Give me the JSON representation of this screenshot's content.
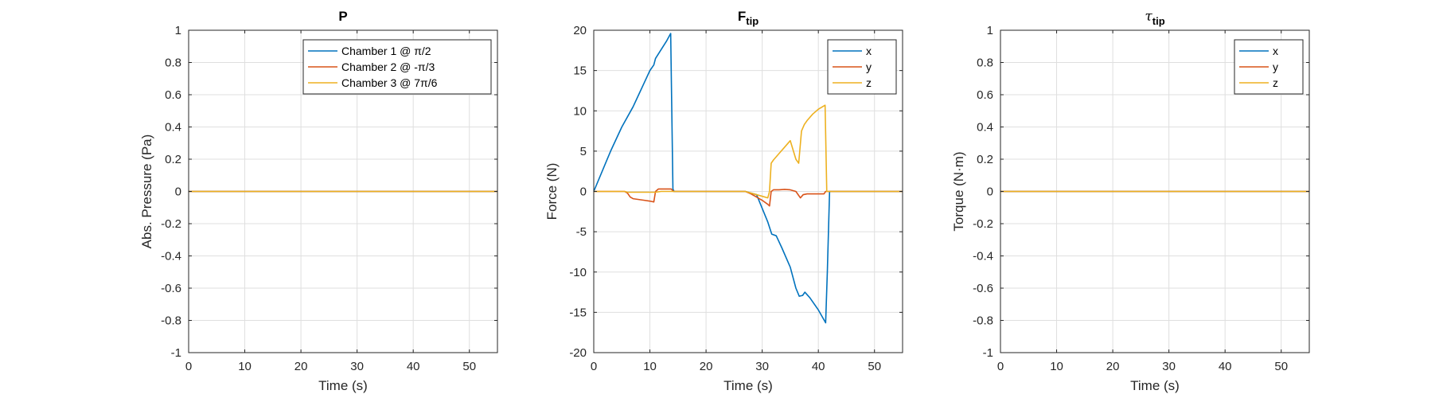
{
  "chart_data": [
    {
      "type": "line",
      "title": "P",
      "title_sub": "",
      "title_is_symbol": false,
      "xlabel": "Time (s)",
      "ylabel": "Abs. Pressure (Pa)",
      "xlim": [
        0,
        55
      ],
      "ylim": [
        -1,
        1
      ],
      "xticks": [
        0,
        10,
        20,
        30,
        40,
        50
      ],
      "yticks": [
        -1,
        -0.8,
        -0.6,
        -0.4,
        -0.2,
        0,
        0.2,
        0.4,
        0.6,
        0.8,
        1
      ],
      "grid": true,
      "legend_position": "top-right",
      "series": [
        {
          "name": "Chamber 1 @ π/2",
          "color": "#0072BD",
          "x": [
            0,
            55
          ],
          "y": [
            0,
            0
          ]
        },
        {
          "name": "Chamber 2 @ -π/3",
          "color": "#D95319",
          "x": [
            0,
            55
          ],
          "y": [
            0,
            0
          ]
        },
        {
          "name": "Chamber 3 @ 7π/6",
          "color": "#EDB120",
          "x": [
            0,
            55
          ],
          "y": [
            0,
            0
          ]
        }
      ]
    },
    {
      "type": "line",
      "title": "F",
      "title_sub": "tip",
      "title_is_symbol": false,
      "xlabel": "Time (s)",
      "ylabel": "Force (N)",
      "xlim": [
        0,
        55
      ],
      "ylim": [
        -20,
        20
      ],
      "xticks": [
        0,
        10,
        20,
        30,
        40,
        50
      ],
      "yticks": [
        -20,
        -15,
        -10,
        -5,
        0,
        5,
        10,
        15,
        20
      ],
      "grid": true,
      "legend_position": "top-right",
      "series": [
        {
          "name": "x",
          "color": "#0072BD",
          "x": [
            0,
            1.5,
            3,
            5,
            7,
            8,
            9,
            10,
            10.7,
            11,
            12,
            13,
            13.7,
            14.1,
            14.3,
            20,
            27,
            29,
            31,
            31.7,
            32.5,
            33.5,
            35,
            36,
            36.6,
            37.2,
            37.6,
            38.5,
            40,
            41.3,
            41.6,
            42,
            50,
            55
          ],
          "y": [
            0,
            2.5,
            5,
            8,
            10.5,
            12,
            13.5,
            15,
            15.7,
            16.5,
            17.6,
            18.7,
            19.6,
            0.3,
            0,
            0,
            0,
            -0.4,
            -3.8,
            -5.3,
            -5.5,
            -7,
            -9.4,
            -12,
            -13,
            -12.9,
            -12.5,
            -13.2,
            -14.7,
            -16.3,
            -10,
            0,
            0,
            0
          ]
        },
        {
          "name": "y",
          "color": "#D95319",
          "x": [
            0,
            5.5,
            6,
            6.5,
            7,
            8,
            9,
            10,
            10.7,
            11,
            11.5,
            12,
            13,
            13.8,
            14.2,
            20,
            27,
            28,
            29,
            30,
            31,
            31.3,
            31.6,
            32,
            33,
            34,
            35,
            36,
            36.8,
            37.3,
            38,
            39,
            40,
            41,
            41.3,
            41.6,
            50,
            55
          ],
          "y": [
            0,
            0,
            -0.2,
            -0.7,
            -0.9,
            -1,
            -1.1,
            -1.2,
            -1.3,
            0,
            0.3,
            0.3,
            0.3,
            0.3,
            0,
            0,
            0,
            -0.3,
            -0.7,
            -1.1,
            -1.6,
            -1.8,
            0,
            0.2,
            0.2,
            0.25,
            0.2,
            0,
            -0.8,
            -0.4,
            -0.3,
            -0.3,
            -0.3,
            -0.3,
            0,
            0,
            0,
            0
          ]
        },
        {
          "name": "z",
          "color": "#EDB120",
          "x": [
            0,
            5.5,
            6,
            7,
            8,
            9,
            10,
            11,
            12,
            13,
            14,
            15,
            20,
            27,
            28,
            29,
            30,
            31,
            31.3,
            31.6,
            32,
            33,
            34,
            35,
            36,
            36.5,
            37,
            37.5,
            38,
            39,
            40,
            41.2,
            41.5,
            42,
            50,
            55
          ],
          "y": [
            0,
            0,
            -0.1,
            -0.1,
            -0.1,
            -0.1,
            -0.1,
            -0.1,
            0,
            0,
            0,
            0,
            0,
            0,
            -0.2,
            -0.4,
            -0.6,
            -0.8,
            0,
            3.5,
            3.9,
            4.7,
            5.5,
            6.3,
            4,
            3.5,
            7.5,
            8.3,
            8.8,
            9.6,
            10.2,
            10.7,
            0,
            0,
            0,
            0
          ]
        }
      ]
    },
    {
      "type": "line",
      "title": "τ",
      "title_sub": "tip",
      "title_is_symbol": true,
      "xlabel": "Time (s)",
      "ylabel": "Torque (N·m)",
      "xlim": [
        0,
        55
      ],
      "ylim": [
        -1,
        1
      ],
      "xticks": [
        0,
        10,
        20,
        30,
        40,
        50
      ],
      "yticks": [
        -1,
        -0.8,
        -0.6,
        -0.4,
        -0.2,
        0,
        0.2,
        0.4,
        0.6,
        0.8,
        1
      ],
      "grid": true,
      "legend_position": "top-right",
      "series": [
        {
          "name": "x",
          "color": "#0072BD",
          "x": [
            0,
            55
          ],
          "y": [
            0,
            0
          ]
        },
        {
          "name": "y",
          "color": "#D95319",
          "x": [
            0,
            55
          ],
          "y": [
            0,
            0
          ]
        },
        {
          "name": "z",
          "color": "#EDB120",
          "x": [
            0,
            55
          ],
          "y": [
            0,
            0
          ]
        }
      ]
    }
  ]
}
